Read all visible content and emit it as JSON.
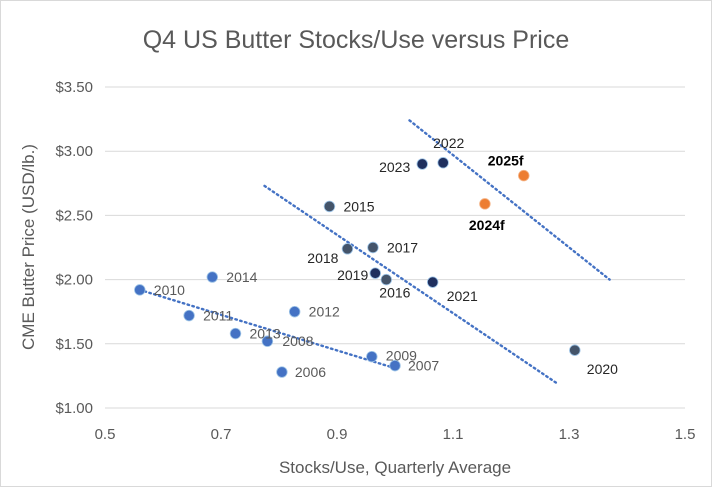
{
  "chart_data": {
    "type": "scatter",
    "title": "Q4 US Butter Stocks/Use versus Price",
    "xlabel": "Stocks/Use, Quarterly Average",
    "ylabel": "CME Butter Price (USD/lb.)",
    "xlim": [
      0.5,
      1.5
    ],
    "ylim": [
      1.0,
      3.5
    ],
    "x_ticks": [
      0.5,
      0.7,
      0.9,
      1.1,
      1.3,
      1.5
    ],
    "x_tick_labels": [
      "0.5",
      "0.7",
      "0.9",
      "1.1",
      "1.3",
      "1.5"
    ],
    "y_ticks": [
      1.0,
      1.5,
      2.0,
      2.5,
      3.0,
      3.5
    ],
    "y_tick_labels": [
      "$1.00",
      "$1.50",
      "$2.00",
      "$2.50",
      "$3.00",
      "$3.50"
    ],
    "grid": "horizontal",
    "legend": "none",
    "colors": {
      "early": "#4472c4",
      "mid": "#44546a",
      "recent": "#1f2f5e",
      "forecast": "#ed7d31",
      "trend": "#4472c4",
      "grid": "#d9d9d9",
      "text": "#595959",
      "label_early": "#595959",
      "label_mid": "#262626",
      "label_forecast": "#000000"
    },
    "points": [
      {
        "label": "2006",
        "x": 0.805,
        "y": 1.28,
        "group": "early"
      },
      {
        "label": "2007",
        "x": 1.0,
        "y": 1.33,
        "group": "early"
      },
      {
        "label": "2008",
        "x": 0.78,
        "y": 1.52,
        "group": "early"
      },
      {
        "label": "2009",
        "x": 0.96,
        "y": 1.4,
        "group": "early"
      },
      {
        "label": "2010",
        "x": 0.56,
        "y": 1.92,
        "group": "early"
      },
      {
        "label": "2011",
        "x": 0.645,
        "y": 1.72,
        "group": "early"
      },
      {
        "label": "2012",
        "x": 0.827,
        "y": 1.75,
        "group": "early"
      },
      {
        "label": "2013",
        "x": 0.725,
        "y": 1.58,
        "group": "early"
      },
      {
        "label": "2014",
        "x": 0.685,
        "y": 2.02,
        "group": "early"
      },
      {
        "label": "2015",
        "x": 0.887,
        "y": 2.57,
        "group": "mid"
      },
      {
        "label": "2016",
        "x": 0.985,
        "y": 2.0,
        "group": "mid"
      },
      {
        "label": "2017",
        "x": 0.962,
        "y": 2.25,
        "group": "mid"
      },
      {
        "label": "2018",
        "x": 0.918,
        "y": 2.24,
        "group": "mid"
      },
      {
        "label": "2019",
        "x": 0.966,
        "y": 2.05,
        "group": "recent"
      },
      {
        "label": "2020",
        "x": 1.31,
        "y": 1.45,
        "group": "mid"
      },
      {
        "label": "2021",
        "x": 1.065,
        "y": 1.98,
        "group": "recent"
      },
      {
        "label": "2022",
        "x": 1.083,
        "y": 2.91,
        "group": "recent"
      },
      {
        "label": "2023",
        "x": 1.047,
        "y": 2.9,
        "group": "recent"
      },
      {
        "label": "2024f",
        "x": 1.155,
        "y": 2.59,
        "group": "forecast"
      },
      {
        "label": "2025f",
        "x": 1.222,
        "y": 2.81,
        "group": "forecast"
      }
    ],
    "trendlines": [
      {
        "x": [
          0.56,
          1.0
        ],
        "y": [
          1.92,
          1.31
        ]
      },
      {
        "x": [
          0.775,
          1.28
        ],
        "y": [
          2.73,
          1.19
        ]
      },
      {
        "x": [
          1.025,
          1.37
        ],
        "y": [
          3.24,
          2.0
        ]
      }
    ]
  }
}
